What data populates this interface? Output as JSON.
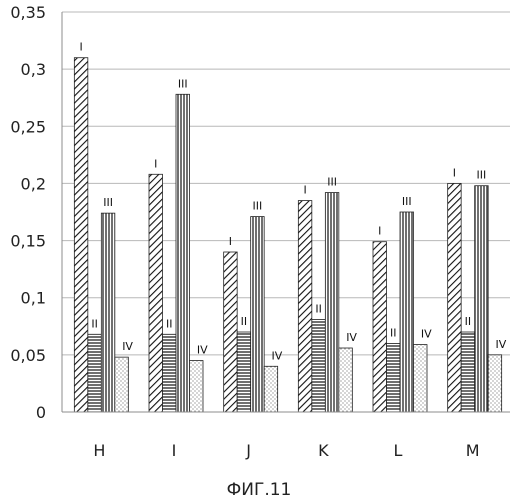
{
  "chart_data": {
    "type": "bar",
    "caption": "ФИГ.11",
    "categories": [
      "H",
      "I",
      "J",
      "K",
      "L",
      "M"
    ],
    "ylim": [
      0,
      0.35
    ],
    "yticks": [
      "0",
      "0,05",
      "0,1",
      "0,15",
      "0,2",
      "0,25",
      "0,3",
      "0,35"
    ],
    "grid": true,
    "legend": "none",
    "series": [
      {
        "label": "I",
        "pattern": "diagonal-hatch",
        "values": [
          0.31,
          0.208,
          0.14,
          0.185,
          0.149,
          0.2
        ]
      },
      {
        "label": "II",
        "pattern": "horizontal-lines",
        "values": [
          0.068,
          0.068,
          0.07,
          0.081,
          0.06,
          0.07
        ]
      },
      {
        "label": "III",
        "pattern": "vertical-lines",
        "values": [
          0.174,
          0.278,
          0.171,
          0.192,
          0.175,
          0.198
        ]
      },
      {
        "label": "IV",
        "pattern": "dots",
        "values": [
          0.048,
          0.045,
          0.04,
          0.056,
          0.059,
          0.05
        ]
      }
    ]
  }
}
